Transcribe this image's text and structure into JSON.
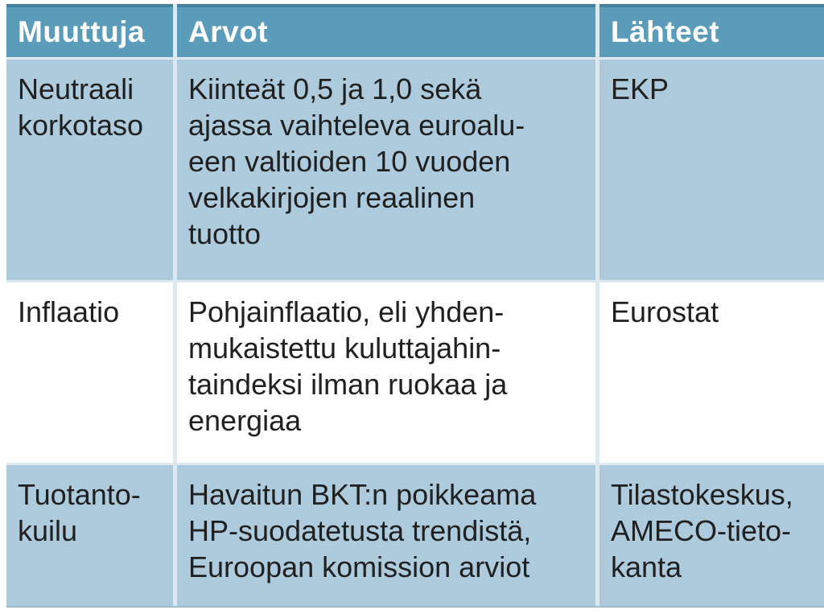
{
  "colors": {
    "header_bg": "#5b9cbb",
    "header_top_border": "#47809d",
    "row_alt_bg": "#adcbdd",
    "row_bg": "#ffffff",
    "divider": "#dde9f1",
    "bottom_border": "#9bbcd1",
    "header_text": "#ffffff",
    "body_text": "#202020"
  },
  "table": {
    "headers": {
      "muuttuja": "Muuttuja",
      "arvot": "Arvot",
      "lahteet": "Lähteet"
    },
    "rows": [
      {
        "muuttuja": "Neutraali\nkorkotaso",
        "arvot": "Kiinteät 0,5 ja 1,0 sekä\najassa vaihteleva euroalu-\neen valtioiden 10 vuoden\nvelkakirjojen reaalinen\ntuotto",
        "lahteet": "EKP"
      },
      {
        "muuttuja": "Inflaatio",
        "arvot": "Pohjainflaatio, eli yhden-\nmukaistettu kuluttajahin-\ntaindeksi ilman ruokaa ja\nenergiaa",
        "lahteet": "Eurostat"
      },
      {
        "muuttuja": "Tuotanto-\nkuilu",
        "arvot": "Havaitun BKT:n poikkeama\nHP-suodatetusta trendistä,\nEuroopan komission arviot",
        "lahteet": "Tilastokeskus,\nAMECO-tieto-\nkanta"
      }
    ]
  }
}
